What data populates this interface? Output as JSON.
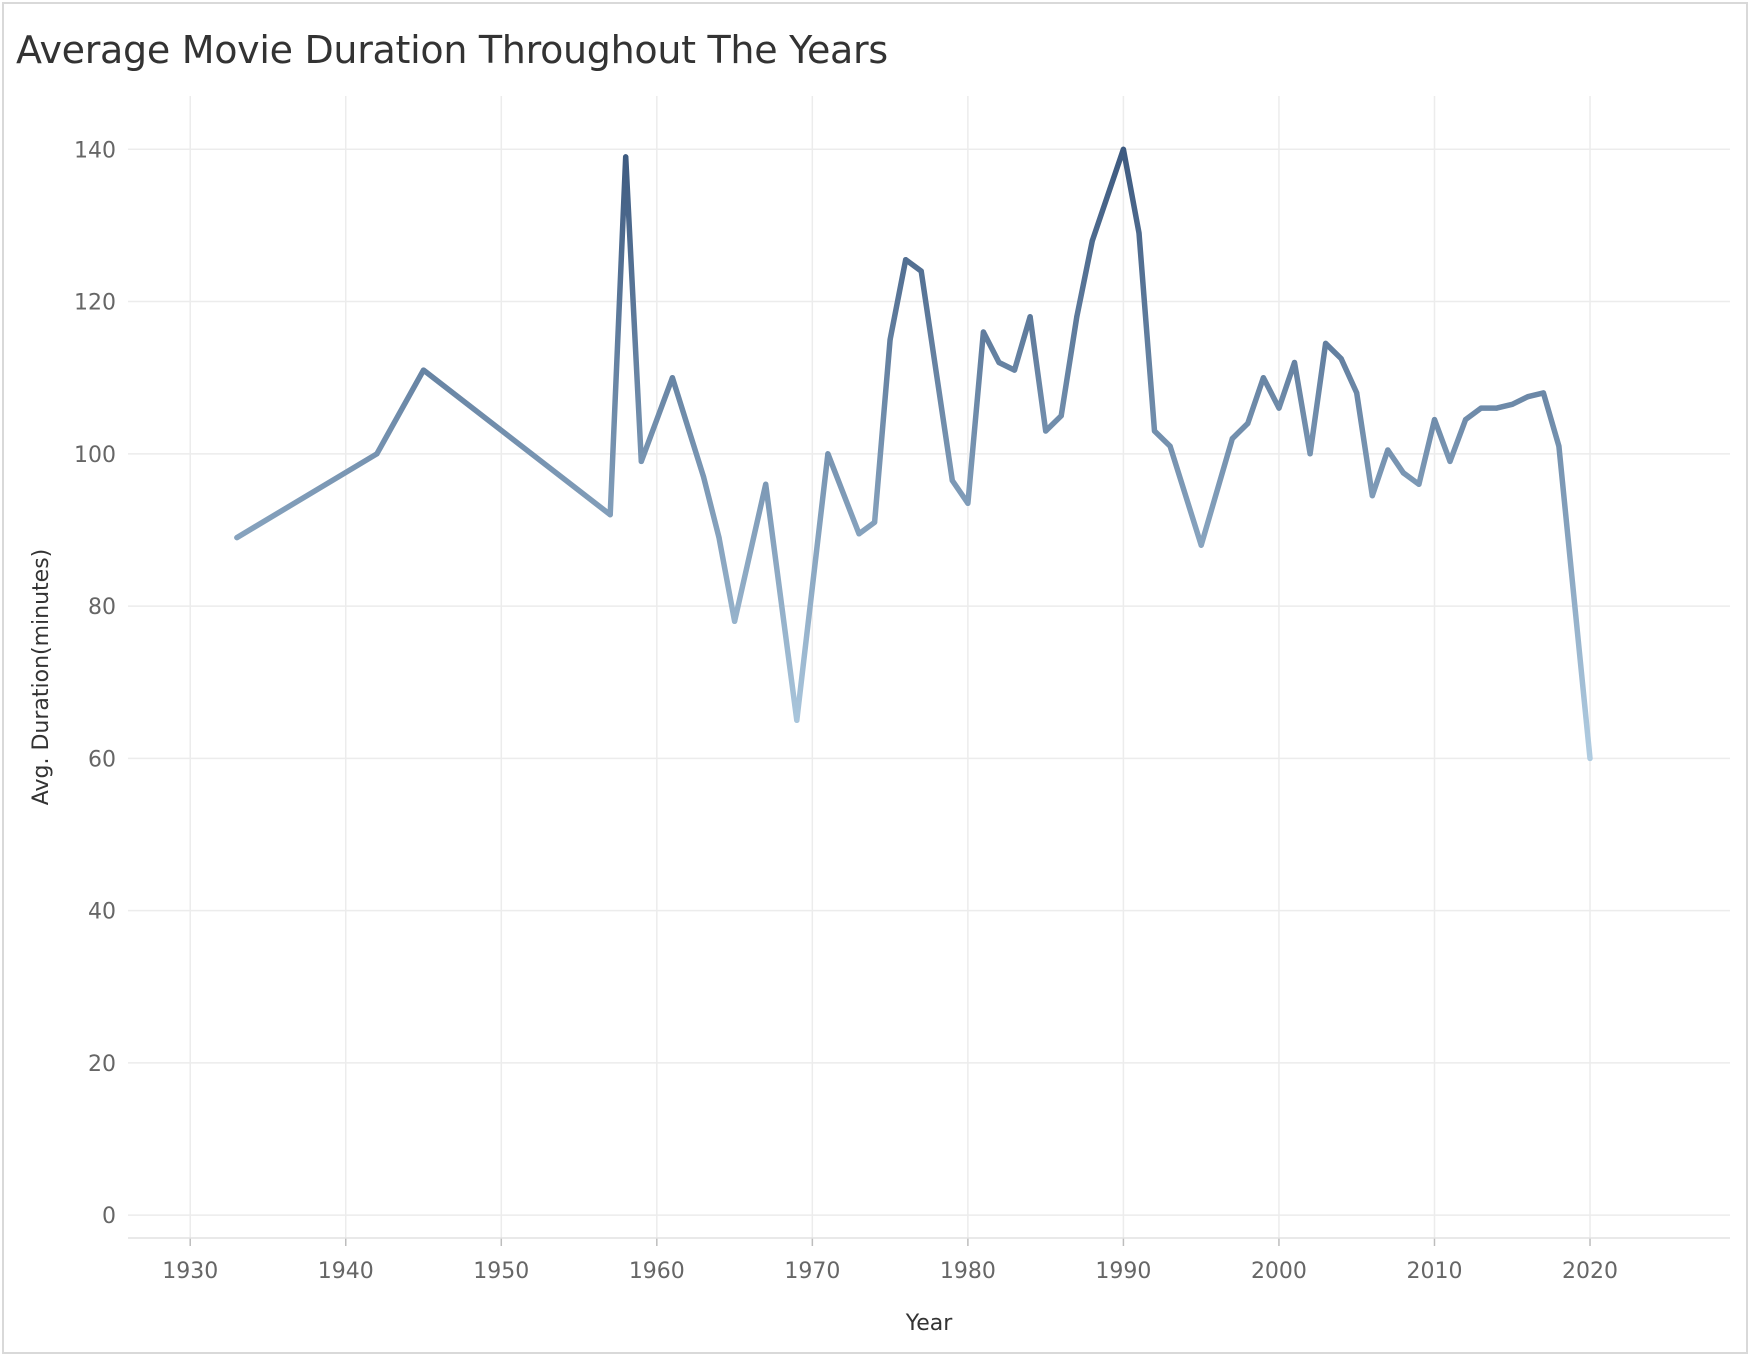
{
  "chart_data": {
    "type": "line",
    "title": "Average Movie Duration Throughout The Years",
    "xlabel": "Year",
    "ylabel": "Avg. Duration(minutes)",
    "xlim": [
      1926,
      2029
    ],
    "ylim": [
      -3,
      147
    ],
    "x_ticks": [
      1930,
      1940,
      1950,
      1960,
      1970,
      1980,
      1990,
      2000,
      2010,
      2020
    ],
    "y_ticks": [
      0,
      20,
      40,
      60,
      80,
      100,
      120,
      140
    ],
    "grid": true,
    "line_color_low": "#b0cce1",
    "line_color_high": "#3d5a80",
    "x": [
      1933,
      1942,
      1945,
      1957,
      1958,
      1959,
      1961,
      1963,
      1964,
      1965,
      1967,
      1969,
      1971,
      1973,
      1974,
      1975,
      1976,
      1977,
      1979,
      1980,
      1981,
      1982,
      1983,
      1984,
      1985,
      1986,
      1987,
      1988,
      1990,
      1991,
      1992,
      1993,
      1995,
      1997,
      1998,
      1999,
      2000,
      2001,
      2002,
      2003,
      2004,
      2005,
      2006,
      2007,
      2008,
      2009,
      2010,
      2011,
      2012,
      2013,
      2014,
      2015,
      2016,
      2017,
      2018,
      2020
    ],
    "values": [
      89,
      100,
      111,
      92,
      139,
      99,
      110,
      97,
      89,
      78,
      96,
      65,
      100,
      89.5,
      91,
      115,
      125.5,
      124,
      96.5,
      93.5,
      116,
      112,
      111,
      118,
      103,
      105,
      118,
      128,
      140,
      129,
      103,
      101,
      88,
      102,
      104,
      110,
      106,
      112,
      100,
      114.5,
      112.5,
      108,
      94.5,
      100.5,
      97.5,
      96,
      104.5,
      99,
      104.5,
      106,
      106,
      106.5,
      107.5,
      108,
      101,
      60
    ]
  }
}
